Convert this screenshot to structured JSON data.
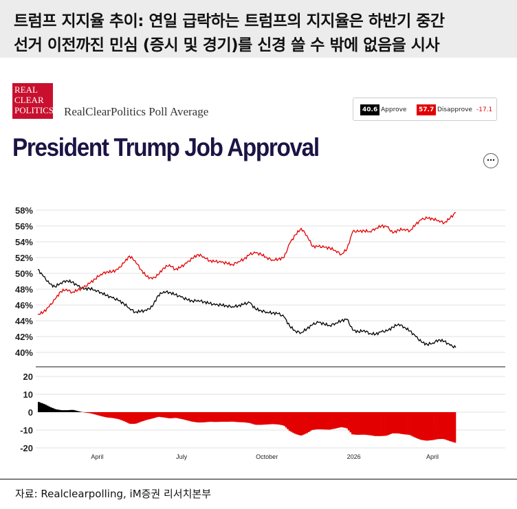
{
  "header": {
    "line1": "트럼프 지지율 추이: 연일 급락하는 트럼프의 지지율은 하반기 중간",
    "line2": "선거 이전까진 민심 (증시 및 경기)를 신경 쓸 수 밖에 없음을 시사"
  },
  "logo": {
    "line1": "REAL",
    "line2": "CLEAR",
    "line3": "POLITICS"
  },
  "poll_title": "RealClearPolitics Poll Average",
  "legend": {
    "approve_value": "40.6",
    "approve_label": "Approve",
    "disapprove_value": "57.7",
    "disapprove_label": "Disapprove",
    "spread": "-17.1"
  },
  "title": "President Trump Job Approval",
  "more_icon": "⋯",
  "colors": {
    "approve": "#000000",
    "disapprove": "#e30000",
    "title": "#1b1444"
  },
  "chart_data": [
    {
      "type": "line",
      "x_ticks": [
        "April",
        "July",
        "October",
        "2026",
        "April"
      ],
      "y_ticks": [
        "58%",
        "56%",
        "54%",
        "52%",
        "50%",
        "48%",
        "46%",
        "44%",
        "42%",
        "40%"
      ],
      "ylim": [
        39.5,
        58.5
      ],
      "grid": true,
      "series": [
        {
          "name": "Approve",
          "color": "#000000",
          "values": [
            50.5,
            49.6,
            48.7,
            48.3,
            48.8,
            49.1,
            48.9,
            48.4,
            48.0,
            48.1,
            47.9,
            47.6,
            47.2,
            46.9,
            46.6,
            46.2,
            45.6,
            45.1,
            45.2,
            45.3,
            45.8,
            47.2,
            47.7,
            47.6,
            47.3,
            47.0,
            46.7,
            46.5,
            46.6,
            46.4,
            46.2,
            46.0,
            46.0,
            45.9,
            45.8,
            45.9,
            46.1,
            46.3,
            45.5,
            45.3,
            45.1,
            45.0,
            44.9,
            44.5,
            43.3,
            42.7,
            42.5,
            43.0,
            43.5,
            43.8,
            43.6,
            43.4,
            43.7,
            44.0,
            44.2,
            42.8,
            42.6,
            42.8,
            42.4,
            42.3,
            42.6,
            42.7,
            43.2,
            43.6,
            43.2,
            42.7,
            42.0,
            41.3,
            41.0,
            41.2,
            41.6,
            41.4,
            40.9,
            40.6
          ]
        },
        {
          "name": "Disapprove",
          "color": "#e30000",
          "values": [
            44.8,
            45.1,
            45.8,
            46.7,
            47.7,
            48.0,
            47.6,
            47.9,
            48.2,
            48.7,
            49.3,
            49.9,
            50.2,
            50.2,
            50.5,
            51.3,
            52.2,
            51.6,
            50.5,
            49.6,
            49.3,
            49.8,
            50.7,
            51.1,
            50.5,
            50.8,
            51.3,
            51.9,
            52.4,
            52.1,
            51.6,
            51.5,
            51.4,
            51.3,
            51.1,
            51.5,
            51.8,
            52.4,
            52.6,
            52.4,
            52.0,
            51.7,
            51.8,
            52.0,
            53.8,
            54.9,
            55.7,
            54.8,
            53.4,
            53.4,
            53.3,
            53.2,
            52.9,
            52.4,
            53.1,
            55.3,
            55.3,
            55.4,
            55.3,
            55.7,
            56.0,
            55.9,
            55.1,
            55.5,
            55.6,
            55.4,
            56.2,
            56.8,
            57.0,
            56.9,
            56.7,
            56.4,
            57.0,
            57.7
          ]
        }
      ]
    },
    {
      "type": "bar",
      "name": "Spread",
      "y_ticks": [
        "20",
        "10",
        "0",
        "-10",
        "-20"
      ],
      "ylim": [
        -21,
        21
      ],
      "colors": {
        "positive": "#000000",
        "negative": "#e30000"
      }
    }
  ],
  "source": "자료: Realclearpolling, iM증권 리서치본부"
}
